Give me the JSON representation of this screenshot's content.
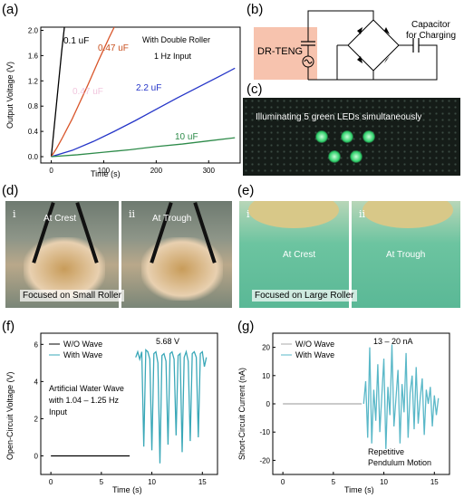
{
  "panels": {
    "a": "(a)",
    "b": "(b)",
    "c": "(c)",
    "d": "(d)",
    "e": "(e)",
    "f": "(f)",
    "g": "(g)"
  },
  "chart_a": {
    "type": "line",
    "xlabel": "Time (s)",
    "ylabel": "Output Voltage (V)",
    "xlim": [
      -20,
      360
    ],
    "ylim": [
      -0.1,
      2.05
    ],
    "xticks": [
      0,
      100,
      200,
      300
    ],
    "yticks": [
      0.0,
      0.4,
      0.8,
      1.2,
      1.6,
      2.0
    ],
    "annotations": [
      "With Double Roller",
      "1 Hz Input"
    ],
    "series": [
      {
        "name": "0.1 uF",
        "color": "#000000",
        "x": [
          0,
          5,
          10,
          15,
          20,
          25
        ],
        "y": [
          0,
          0.42,
          0.84,
          1.26,
          1.68,
          2.05
        ]
      },
      {
        "name": "0.47 uF",
        "color": "#d9552a",
        "x": [
          0,
          10,
          20,
          30,
          40,
          50,
          60,
          70,
          80,
          90,
          100,
          110,
          120
        ],
        "y": [
          0,
          0.13,
          0.28,
          0.44,
          0.6,
          0.78,
          0.96,
          1.14,
          1.33,
          1.52,
          1.7,
          1.88,
          2.05
        ]
      },
      {
        "name": "0.47 uF",
        "color": "#e8a0c8",
        "x": [],
        "y": []
      },
      {
        "name": "2.2 uF",
        "color": "#2535c8",
        "x": [
          0,
          40,
          80,
          120,
          160,
          200,
          240,
          280,
          320,
          350
        ],
        "y": [
          0,
          0.1,
          0.24,
          0.4,
          0.57,
          0.75,
          0.93,
          1.1,
          1.27,
          1.4
        ]
      },
      {
        "name": "10 uF",
        "color": "#2e8b4a",
        "x": [
          0,
          50,
          100,
          150,
          200,
          250,
          300,
          350
        ],
        "y": [
          0,
          0.03,
          0.07,
          0.11,
          0.16,
          0.2,
          0.25,
          0.3
        ]
      }
    ]
  },
  "circuit": {
    "device_label": "DR-TENG",
    "capacitor_label_1": "Capacitor",
    "capacitor_label_2": "for Charging"
  },
  "photo_c": {
    "caption": "Illuminating 5 green LEDs simultaneously"
  },
  "photo_d": {
    "roman_1": "i",
    "roman_2": "ii",
    "label_1": "At Crest",
    "label_2": "At Trough",
    "focus": "Focused on Small Roller"
  },
  "photo_e": {
    "roman_1": "i",
    "roman_2": "ii",
    "label_1": "At Crest",
    "label_2": "At Trough",
    "focus": "Focused on Large Roller"
  },
  "chart_f": {
    "type": "line",
    "xlabel": "Time (s)",
    "ylabel": "Open-Circuit Voltage (V)",
    "xlim": [
      -1,
      16.5
    ],
    "ylim": [
      -1,
      6.6
    ],
    "xticks": [
      0,
      5,
      10,
      15
    ],
    "yticks": [
      0,
      2,
      4,
      6
    ],
    "peak_label": "5.68 V",
    "annotation_1": "Artificial Water Wave",
    "annotation_2": "with 1.04 – 1.25 Hz",
    "annotation_3": "Input",
    "series": [
      {
        "name": "W/O Wave",
        "color": "#000000",
        "x": [
          0,
          7.8
        ],
        "y": [
          0,
          0
        ]
      },
      {
        "name": "With Wave",
        "color": "#3aa8b8",
        "x": [
          8.4,
          8.6,
          8.8,
          9.0,
          9.2,
          9.4,
          9.6,
          9.8,
          10.0,
          10.2,
          10.4,
          10.6,
          10.8,
          11.0,
          11.2,
          11.4,
          11.6,
          11.8,
          12.0,
          12.2,
          12.4,
          12.6,
          12.8,
          13.0,
          13.2,
          13.4,
          13.6,
          13.8,
          14.0,
          14.2,
          14.4,
          14.6,
          14.8,
          15.0,
          15.2,
          15.4
        ],
        "y": [
          5.3,
          5.6,
          5.2,
          5.6,
          0.5,
          5.7,
          5.6,
          5.2,
          0.3,
          5.5,
          5.6,
          5.0,
          -0.4,
          5.4,
          5.5,
          5.1,
          0.6,
          5.5,
          5.6,
          5.2,
          1.1,
          5.4,
          5.5,
          0.2,
          5.3,
          5.6,
          5.1,
          0.8,
          5.5,
          5.6,
          5.3,
          1.0,
          5.5,
          5.6,
          4.8,
          5.3
        ]
      }
    ]
  },
  "chart_g": {
    "type": "line",
    "xlabel": "Time (s)",
    "ylabel": "Short-Circuit Current (nA)",
    "xlim": [
      -1,
      16.5
    ],
    "ylim": [
      -25,
      25
    ],
    "xticks": [
      0,
      5,
      10,
      15
    ],
    "yticks": [
      -20,
      -10,
      0,
      10,
      20
    ],
    "peak_label": "13 – 20 nA",
    "annotation_1": "Repetitive",
    "annotation_2": "Pendulum Motion",
    "series": [
      {
        "name": "W/O Wave",
        "color": "#aaaaaa",
        "x": [
          0,
          7.8
        ],
        "y": [
          0,
          0
        ]
      },
      {
        "name": "With Wave",
        "color": "#5ab8c8",
        "x": [
          8.0,
          8.2,
          8.4,
          8.6,
          8.8,
          9.0,
          9.2,
          9.4,
          9.6,
          9.8,
          10.0,
          10.2,
          10.4,
          10.6,
          10.8,
          11.0,
          11.2,
          11.4,
          11.6,
          11.8,
          12.0,
          12.2,
          12.4,
          12.6,
          12.8,
          13.0,
          13.2,
          13.4,
          13.6,
          13.8,
          14.0,
          14.2,
          14.4,
          14.6,
          14.8,
          15.0,
          15.2,
          15.4
        ],
        "y": [
          0,
          8,
          -12,
          20,
          -14,
          5,
          -6,
          14,
          -10,
          3,
          16,
          -16,
          6,
          -4,
          21,
          -8,
          2,
          12,
          -14,
          7,
          -3,
          18,
          -12,
          4,
          10,
          -9,
          13,
          -7,
          2,
          9,
          -11,
          5,
          0,
          6,
          -8,
          3,
          -4,
          2
        ]
      }
    ]
  }
}
